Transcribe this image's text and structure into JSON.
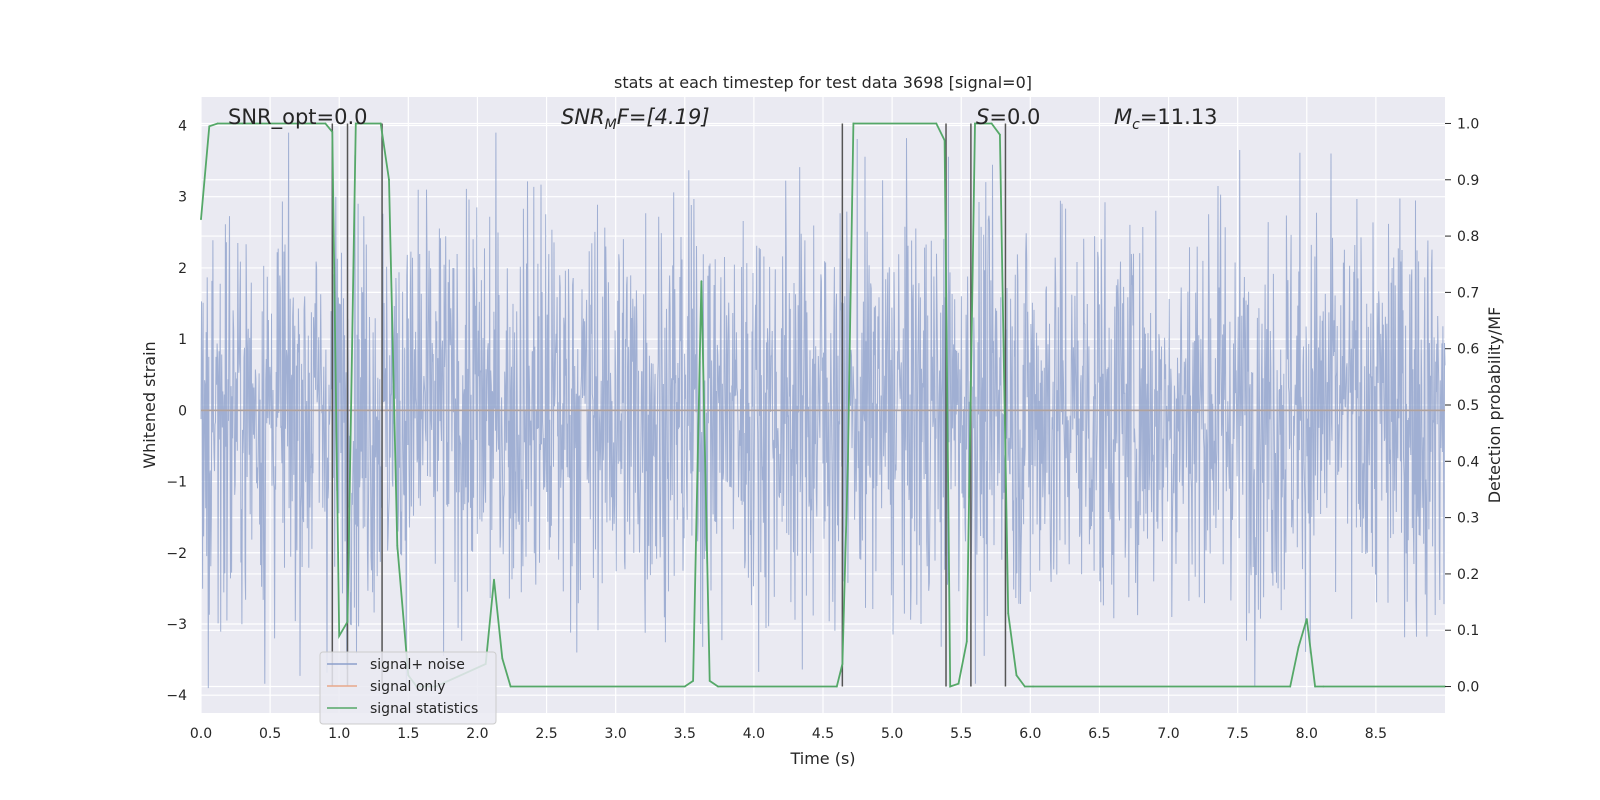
{
  "chart_data": {
    "type": "line",
    "title": "stats at each timestep for test data 3698 [signal=0]",
    "xlabel": "Time (s)",
    "ylabel": "Whitened strain",
    "ylabel_right": "Detection probability/MF",
    "xlim": [
      0.0,
      9.0
    ],
    "ylim": [
      -4.25,
      4.4
    ],
    "ylim_right": [
      -0.047,
      1.047
    ],
    "grid": true,
    "x_ticks": [
      0.0,
      0.5,
      1.0,
      1.5,
      2.0,
      2.5,
      3.0,
      3.5,
      4.0,
      4.5,
      5.0,
      5.5,
      6.0,
      6.5,
      7.0,
      7.5,
      8.0,
      8.5
    ],
    "x_tick_labels": [
      "0.0",
      "0.5",
      "1.0",
      "1.5",
      "2.0",
      "2.5",
      "3.0",
      "3.5",
      "4.0",
      "4.5",
      "5.0",
      "5.5",
      "6.0",
      "6.5",
      "7.0",
      "7.5",
      "8.0",
      "8.5"
    ],
    "y_ticks": [
      4,
      3,
      2,
      1,
      0,
      -1,
      -2,
      -3,
      -4
    ],
    "y_tick_labels": [
      "4",
      "3",
      "2",
      "1",
      "0",
      "−1",
      "−2",
      "−3",
      "−4"
    ],
    "y_right_ticks": [
      1.0,
      0.9,
      0.8,
      0.7,
      0.6,
      0.5,
      0.4,
      0.3,
      0.2,
      0.1,
      0.0
    ],
    "y_right_tick_labels": [
      "1.0",
      "0.9",
      "0.8",
      "0.7",
      "0.6",
      "0.5",
      "0.4",
      "0.3",
      "0.2",
      "0.1",
      "0.0"
    ],
    "annotations": [
      {
        "text": "SNR_opt=0.0",
        "x": 0.2,
        "y": 4.05
      },
      {
        "text": "SNR",
        "sub": "M",
        "rest": "F=[4.19]",
        "x": 2.6,
        "y": 4.05
      },
      {
        "text": "S",
        "rest": "=0.0",
        "x": 5.6,
        "y": 4.05
      },
      {
        "text": "M",
        "sub": "c",
        "rest": "=11.13",
        "x": 6.6,
        "y": 4.05
      }
    ],
    "legend": {
      "position": "lower-left",
      "entries": [
        {
          "label": "signal+ noise",
          "color": "#8da0cb"
        },
        {
          "label": "signal only",
          "color": "#e8a88a"
        },
        {
          "label": "signal statistics",
          "color": "#55a868"
        }
      ]
    },
    "series": [
      {
        "name": "signal+ noise",
        "kind": "noise",
        "color": "#8da0cb",
        "x_range": [
          0.0,
          9.0
        ],
        "typical_amplitude": 1.5,
        "peak_amplitude": 3.9
      },
      {
        "name": "signal only",
        "color": "#e8a88a",
        "x": [
          0.0,
          9.0
        ],
        "y": [
          0.0,
          0.0
        ]
      },
      {
        "name": "signal statistics",
        "color": "#55a868",
        "axis": "right",
        "x": [
          0.0,
          0.06,
          0.12,
          0.3,
          0.9,
          0.95,
          1.0,
          1.06,
          1.12,
          1.3,
          1.36,
          1.42,
          1.5,
          1.56,
          1.62,
          1.7,
          2.06,
          2.12,
          2.18,
          2.24,
          3.5,
          3.56,
          3.62,
          3.68,
          3.74,
          4.6,
          4.64,
          4.68,
          4.72,
          5.32,
          5.38,
          5.42,
          5.48,
          5.54,
          5.6,
          5.66,
          5.72,
          5.78,
          5.84,
          5.9,
          5.96,
          6.02,
          7.88,
          7.94,
          8.0,
          8.06,
          8.12,
          9.0
        ],
        "y": [
          0.83,
          0.995,
          1.0,
          1.0,
          1.0,
          0.985,
          0.09,
          0.115,
          1.0,
          1.0,
          0.9,
          0.25,
          0.02,
          0.0,
          0.0,
          0.0,
          0.04,
          0.19,
          0.05,
          0.0,
          0.0,
          0.01,
          0.72,
          0.01,
          0.0,
          0.0,
          0.04,
          0.4,
          1.0,
          1.0,
          0.97,
          0.0,
          0.005,
          0.08,
          1.0,
          1.0,
          1.0,
          0.98,
          0.13,
          0.02,
          0.0,
          0.0,
          0.0,
          0.07,
          0.12,
          0.0,
          0.0,
          0.0
        ]
      }
    ],
    "vertical_markers": [
      0.95,
      1.06,
      1.31,
      4.64,
      5.39,
      5.57,
      5.82
    ]
  }
}
